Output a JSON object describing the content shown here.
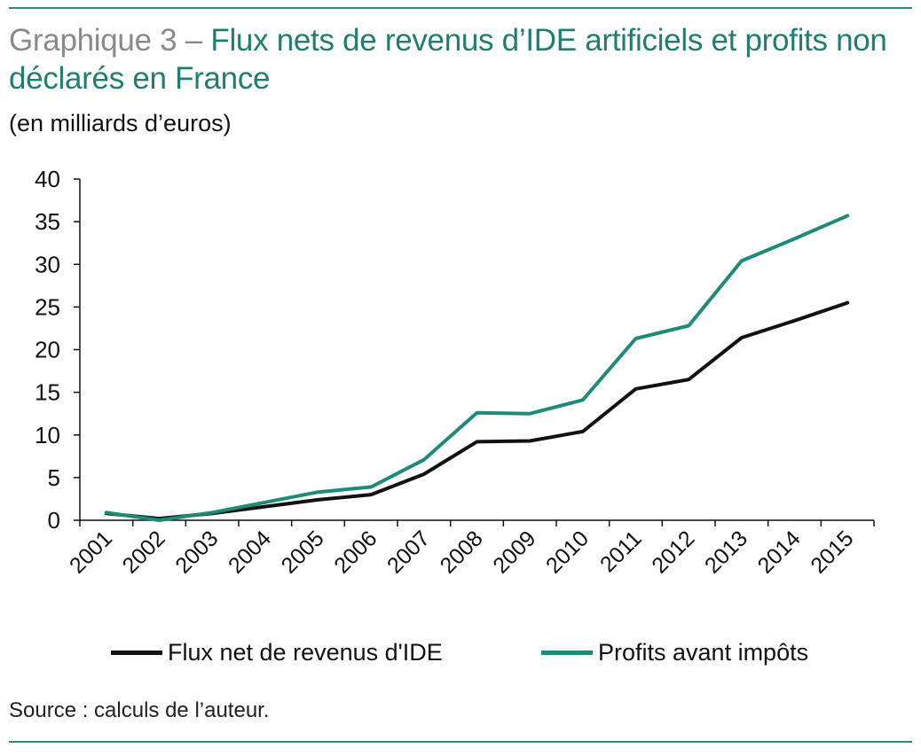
{
  "header": {
    "title_prefix": "Graphique 3 – ",
    "title_main": "Flux nets de revenus d’IDE artificiels et profits non déclarés en France",
    "subtitle": "(en milliards d’euros)"
  },
  "footer": {
    "source": "Source : calculs de l’auteur."
  },
  "colors": {
    "accent": "#1f7f6e",
    "rule": "#2e8b78",
    "series_flux": "#111111",
    "series_profits": "#1e8a78",
    "title_prefix": "#8a8a8a"
  },
  "chart_data": {
    "type": "line",
    "x": [
      "2001",
      "2002",
      "2003",
      "2004",
      "2005",
      "2006",
      "2007",
      "2008",
      "2009",
      "2010",
      "2011",
      "2012",
      "2013",
      "2014",
      "2015"
    ],
    "series": [
      {
        "name": "Flux net de revenus d'IDE",
        "color": "#111111",
        "values": [
          0.8,
          0.2,
          0.8,
          1.6,
          2.4,
          3.0,
          5.4,
          9.2,
          9.3,
          10.4,
          15.4,
          16.5,
          21.4,
          23.4,
          25.5
        ]
      },
      {
        "name": "Profits avant impôts",
        "color": "#1e8a78",
        "values": [
          0.9,
          0.0,
          0.9,
          2.1,
          3.3,
          3.9,
          7.1,
          12.6,
          12.5,
          14.1,
          21.3,
          22.8,
          30.4,
          33.0,
          35.7
        ]
      }
    ],
    "yticks": [
      0,
      5,
      10,
      15,
      20,
      25,
      30,
      35,
      40
    ],
    "ylim": [
      0,
      40
    ],
    "grid": false,
    "legend_position": "bottom"
  }
}
